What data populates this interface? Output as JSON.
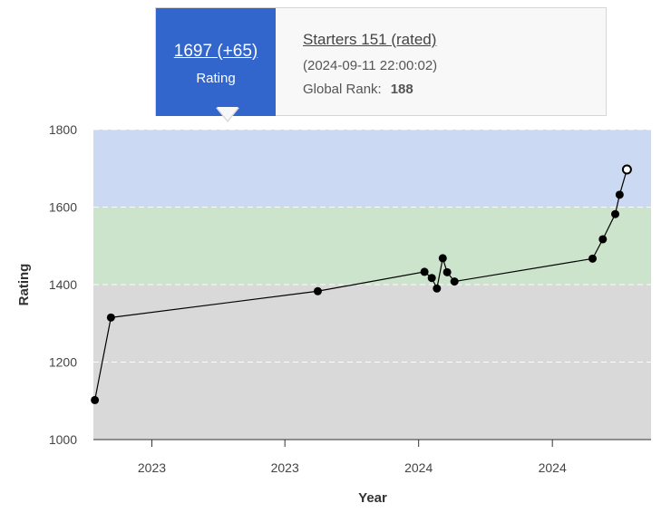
{
  "chart_data": {
    "type": "line",
    "xlabel": "Year",
    "ylabel": "Rating",
    "ylim": [
      1000,
      1800
    ],
    "y_ticks": [
      1000,
      1200,
      1400,
      1600,
      1800
    ],
    "x_range": [
      "2022-09-12",
      "2024-10-14"
    ],
    "x_ticks": [
      {
        "date": "2022-12-01",
        "label": "2023"
      },
      {
        "date": "2023-06-01",
        "label": "2023"
      },
      {
        "date": "2023-12-01",
        "label": "2024"
      },
      {
        "date": "2024-06-01",
        "label": "2024"
      }
    ],
    "bands": [
      {
        "from": 1000,
        "to": 1400,
        "color": "#d9d9d9"
      },
      {
        "from": 1400,
        "to": 1600,
        "color": "#cce3cc"
      },
      {
        "from": 1600,
        "to": 1800,
        "color": "#ccd9f2"
      }
    ],
    "grid": true,
    "line_color": "#000000",
    "points": [
      {
        "x": "2022-09-14",
        "y": 1102
      },
      {
        "x": "2022-10-06",
        "y": 1315
      },
      {
        "x": "2023-07-16",
        "y": 1383
      },
      {
        "x": "2023-12-09",
        "y": 1433
      },
      {
        "x": "2023-12-19",
        "y": 1417
      },
      {
        "x": "2023-12-26",
        "y": 1390
      },
      {
        "x": "2024-01-03",
        "y": 1468
      },
      {
        "x": "2024-01-09",
        "y": 1432
      },
      {
        "x": "2024-01-19",
        "y": 1408
      },
      {
        "x": "2024-07-26",
        "y": 1467
      },
      {
        "x": "2024-08-09",
        "y": 1517
      },
      {
        "x": "2024-08-26",
        "y": 1582
      },
      {
        "x": "2024-09-01",
        "y": 1632
      },
      {
        "x": "2024-09-11",
        "y": 1697,
        "highlight": true
      }
    ]
  },
  "tooltip": {
    "rating": "1697 (+65)",
    "rating_label": "Rating",
    "contest": "Starters 151 (rated)",
    "time": "(2024-09-11 22:00:02)",
    "rank_label": "Global Rank:",
    "rank_value": "188",
    "accent": "#3366cc"
  }
}
